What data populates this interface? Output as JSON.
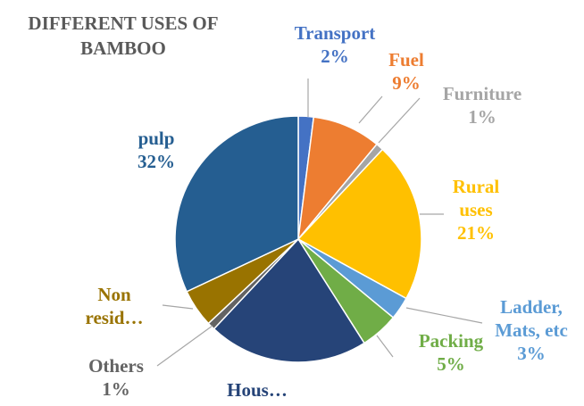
{
  "chart_data": {
    "type": "pie",
    "title": "DIFFERENT USES OF BAMBOO",
    "categories": [
      "Transport",
      "Fuel",
      "Furniture",
      "Rural uses",
      "Ladder, Mats, etc",
      "Packing",
      "Hous…",
      "Others",
      "Non resid…",
      "pulp"
    ],
    "values": [
      2,
      9,
      1,
      21,
      3,
      5,
      21,
      1,
      5,
      32
    ],
    "value_labels": [
      "2%",
      "9%",
      "1%",
      "21%",
      "3%",
      "5%",
      null,
      "1%",
      null,
      "32%"
    ],
    "colors": [
      "#4472c4",
      "#ed7d31",
      "#a5a5a5",
      "#ffc000",
      "#5b9bd5",
      "#70ad47",
      "#264478",
      "#636363",
      "#997300",
      "#255e91"
    ]
  }
}
